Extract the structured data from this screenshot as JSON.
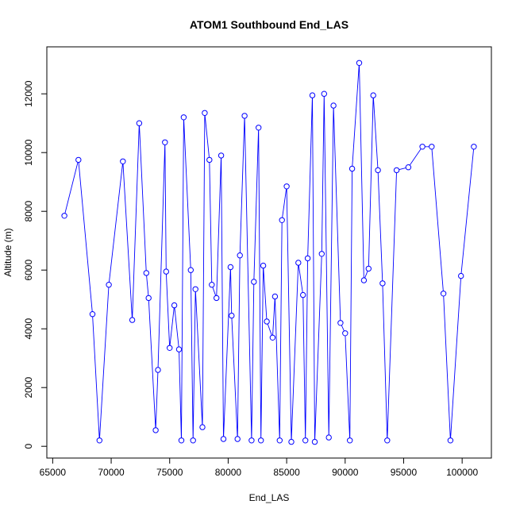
{
  "chart_data": {
    "type": "line",
    "title": "ATOM1 Southbound End_LAS",
    "xlabel": "End_LAS",
    "ylabel": "Altitude (m)",
    "xlim": [
      64500,
      102500
    ],
    "ylim": [
      -400,
      13600
    ],
    "xticks": [
      65000,
      70000,
      75000,
      80000,
      85000,
      90000,
      95000,
      100000
    ],
    "yticks": [
      0,
      2000,
      4000,
      6000,
      8000,
      10000,
      12000
    ],
    "line_color": "#0000FF",
    "marker": "open-circle",
    "legend": "none",
    "grid": false,
    "series": [
      {
        "x": [
          66000,
          67200,
          68400,
          69000,
          69800,
          71000,
          71800,
          72400,
          73000,
          73200,
          73800,
          74000,
          74600,
          74700,
          75000,
          75400,
          75800,
          76000,
          76200,
          76800,
          77000,
          77200,
          77800,
          78000,
          78400,
          78600,
          79000,
          79400,
          79600,
          80200,
          80300,
          80800,
          81000,
          81400,
          82000,
          82200,
          82600,
          82800,
          83000,
          83300,
          83800,
          84000,
          84400,
          84600,
          85000,
          85400,
          86000,
          86400,
          86600,
          86800,
          87200,
          87400,
          88000,
          88200,
          88600,
          89000,
          89600,
          90000,
          90400,
          90600,
          91200,
          91600,
          92000,
          92400,
          92800,
          93200,
          93600,
          94400,
          95400,
          96600,
          97400,
          98400,
          99000,
          99900,
          101000
        ],
        "y": [
          7850,
          9750,
          4500,
          200,
          5500,
          9700,
          4300,
          11000,
          5900,
          5050,
          550,
          2600,
          10350,
          5950,
          3350,
          4800,
          3300,
          200,
          11200,
          6000,
          200,
          5350,
          650,
          11350,
          9750,
          5500,
          5050,
          9900,
          250,
          6100,
          4450,
          250,
          6500,
          11250,
          200,
          5600,
          10850,
          200,
          6150,
          4250,
          3700,
          5100,
          200,
          7700,
          8850,
          150,
          6250,
          5150,
          200,
          6400,
          11950,
          150,
          6550,
          12000,
          300,
          11600,
          4200,
          3850,
          200,
          9450,
          13050,
          5650,
          6050,
          11950,
          9400,
          5550,
          200,
          9400,
          9500,
          10200,
          10200,
          5200,
          200,
          5800,
          10200
        ]
      }
    ]
  }
}
